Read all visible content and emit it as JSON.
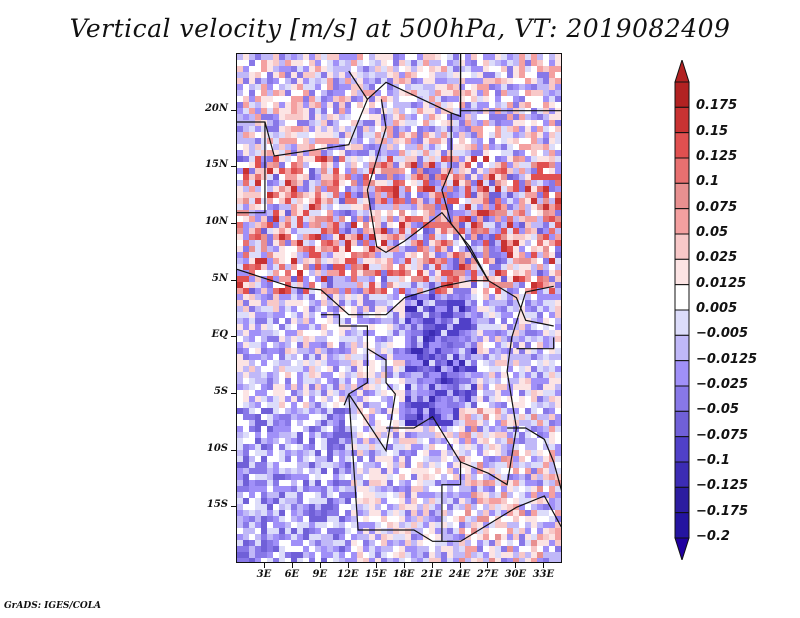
{
  "title": "Vertical velocity [m/s] at 500hPa, VT: 2019082409",
  "footer": "GrADS: IGES/COLA",
  "map": {
    "variable": "Vertical velocity",
    "units": "m/s",
    "level": "500hPa",
    "valid_time": "2019082409",
    "lon_range": [
      0,
      35
    ],
    "lat_range": [
      -20,
      25
    ],
    "y_axis": {
      "ticks": [
        {
          "value": 20,
          "label": "20N"
        },
        {
          "value": 15,
          "label": "15N"
        },
        {
          "value": 10,
          "label": "10N"
        },
        {
          "value": 5,
          "label": "5N"
        },
        {
          "value": 0,
          "label": "EQ"
        },
        {
          "value": -5,
          "label": "5S"
        },
        {
          "value": -10,
          "label": "10S"
        },
        {
          "value": -15,
          "label": "15S"
        }
      ]
    },
    "x_axis": {
      "ticks": [
        {
          "value": 3,
          "label": "3E"
        },
        {
          "value": 6,
          "label": "6E"
        },
        {
          "value": 9,
          "label": "9E"
        },
        {
          "value": 12,
          "label": "12E"
        },
        {
          "value": 15,
          "label": "15E"
        },
        {
          "value": 18,
          "label": "18E"
        },
        {
          "value": 21,
          "label": "21E"
        },
        {
          "value": 24,
          "label": "24E"
        },
        {
          "value": 27,
          "label": "27E"
        },
        {
          "value": 30,
          "label": "30E"
        },
        {
          "value": 33,
          "label": "33E"
        }
      ]
    }
  },
  "colorbar": {
    "levels": [
      {
        "label": "0.175",
        "color": "#b22222"
      },
      {
        "label": "0.15",
        "color": "#c83232"
      },
      {
        "label": "0.125",
        "color": "#e05050"
      },
      {
        "label": "0.1",
        "color": "#e87070"
      },
      {
        "label": "0.075",
        "color": "#e89090"
      },
      {
        "label": "0.05",
        "color": "#f4a0a0"
      },
      {
        "label": "0.025",
        "color": "#f8c8c8"
      },
      {
        "label": "0.0125",
        "color": "#fce4e4"
      },
      {
        "label": "0.005",
        "color": "#ffffff"
      },
      {
        "label": "-0.005",
        "color": "#dcdcfa"
      },
      {
        "label": "-0.0125",
        "color": "#c0b8f8"
      },
      {
        "label": "-0.025",
        "color": "#a090f8"
      },
      {
        "label": "-0.05",
        "color": "#8878e8"
      },
      {
        "label": "-0.075",
        "color": "#7060d8"
      },
      {
        "label": "-0.1",
        "color": "#5040c8"
      },
      {
        "label": "-0.125",
        "color": "#3c2cb4"
      },
      {
        "label": "-0.175",
        "color": "#2c1ca0"
      },
      {
        "label": "-0.2",
        "color": ""
      }
    ],
    "top_arrow_color": "#b22222",
    "bottom_arrow_color": "#2000a0"
  },
  "palette": {
    "background_blue": "#e6e6fb",
    "border_color": "#111111"
  }
}
